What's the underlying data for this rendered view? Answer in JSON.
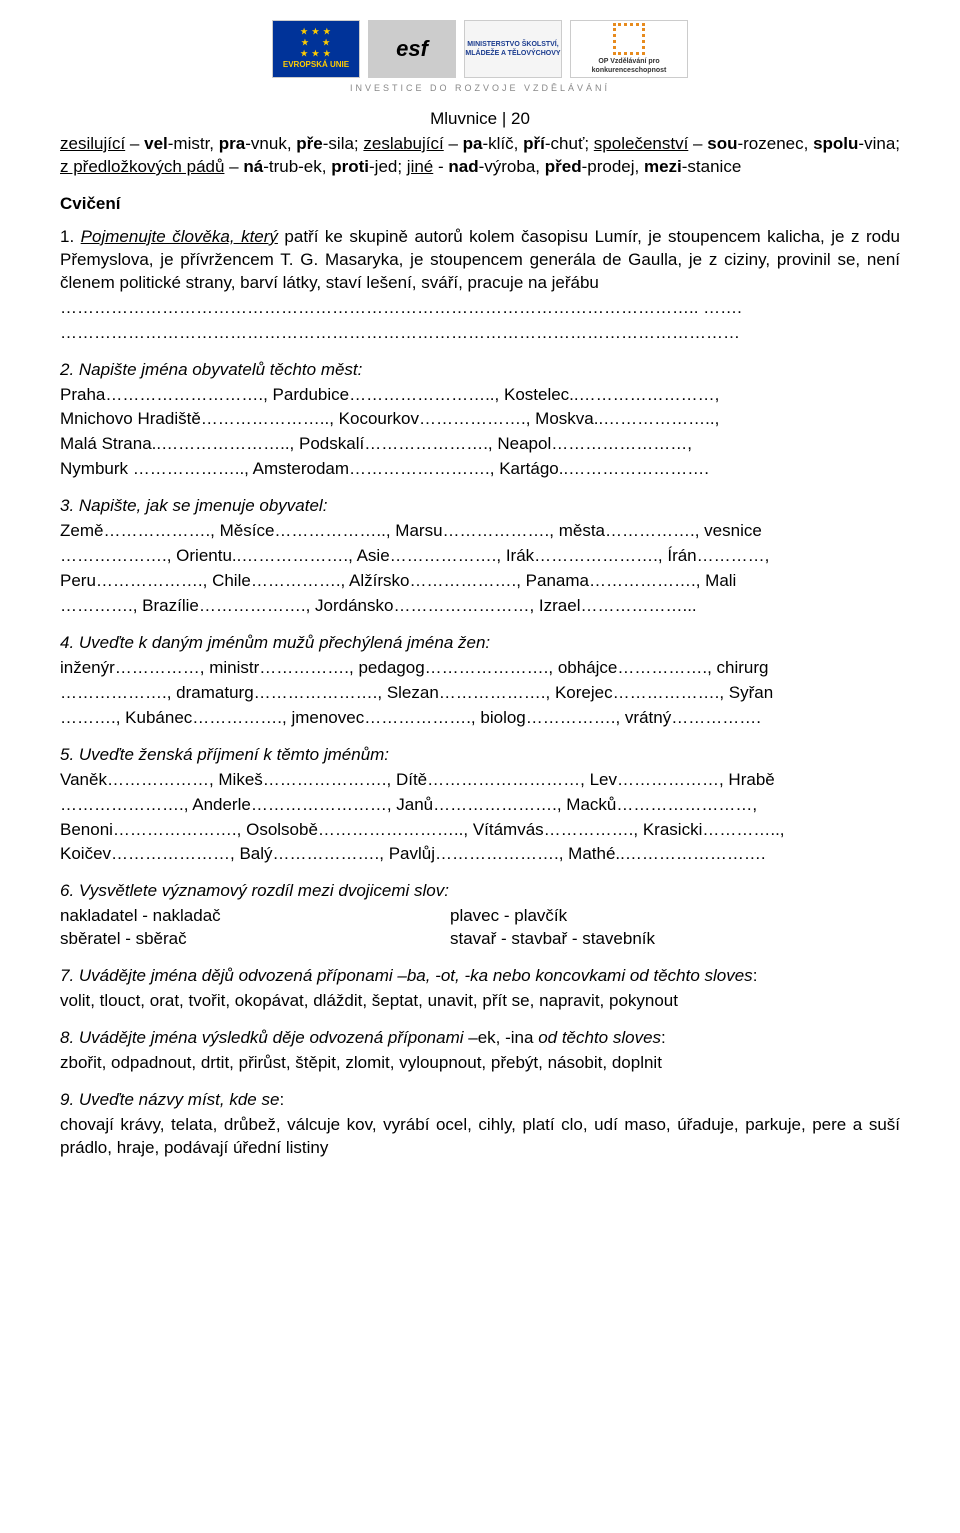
{
  "header": {
    "tagline": "INVESTICE DO ROZVOJE VZDĚLÁVÁNÍ",
    "pageLabel": "Mluvnice | 20"
  },
  "logos": {
    "eu": "EVROPSKÁ UNIE",
    "esf": "esf",
    "msmt": "MINISTERSTVO ŠKOLSTVÍ, MLÁDEŽE A TĚLOVÝCHOVY",
    "op": "OP Vzdělávání pro konkurenceschopnost"
  },
  "intro": {
    "p1": "zesilující – vel-mistr, pra-vnuk, pře-sila; zeslabující – pa-klíč, pří-chuť; společenství – sou-rozenec, spolu-vina; z předložkových pádů – ná-trub-ek, proti-jed; jiné - nad-výroba, před-prodej, mezi-stanice"
  },
  "cviceni": "Cvičení",
  "q1": {
    "lead": "1.  ",
    "title": "Pojmenujte člověka, který",
    "body": " patří ke skupině autorů kolem časopisu Lumír, je stoupencem kalicha, je z rodu Přemyslova, je přívržencem T. G. Masaryka, je stoupencem generála de Gaulla,  je z ciziny, provinil se, není členem politické strany, barví látky, staví lešení, sváří, pracuje na jeřábu",
    "dots1": "………………………………………………………………………………………………….. …….",
    "dots2": "…………………………………………………………………………………………………………"
  },
  "q2": {
    "title": "2.  Napište jména obyvatelů těchto měst:",
    "l1": "Praha………………………., Pardubice…………………….., Kostelec..……………………,",
    "l2": "Mnichovo Hradiště………………….., Kocourkov………………., Moskva..………………..,",
    "l3": "Malá Strana..………………….., Podskalí…………………., Neapol……………………,",
    "l4": "Nymburk ……………….., Amsterodam……………………., Kartágo..……………………."
  },
  "q3": {
    "title": "3.  Napište, jak se jmenuje obyvatel:",
    "l1": "Země………………., Měsíce……………….., Marsu………………., města……………., vesnice",
    "l2": "………………., Orientu..………………., Asie………………., Irák…………………., Írán…………,",
    "l3": "Peru………………., Chile……………., Alžírsko………………., Panama………………., Mali",
    "l4": "…………., Brazílie………………., Jordánsko……………………, Izrael………………..."
  },
  "q4": {
    "title": "4.  Uveďte k daným jménům mužů přechýlená jména žen:",
    "l1": "inženýr……………, ministr……………., pedagog…………………., obhájce……………., chirurg",
    "l2": "………………., dramaturg…………………., Slezan………………., Korejec………………., Syřan",
    "l3": "………., Kubánec……………., jmenovec………………., biolog……………., vrátný……………."
  },
  "q5": {
    "title": "5.  Uveďte ženská příjmení k těmto jménům:",
    "l1": "Vaněk………………, Mikeš…………………., Dítě………………………, Lev………………, Hrabě",
    "l2": "…………………., Anderle……………………, Janů…………………., Macků……………………,",
    "l3": "Benoni…………………., Osolsobě…………………….., Vítámvás……………., Krasicki…………..,",
    "l4": "Koičev…………………, Balý………………., Pavlůj…………………., Mathé..……………………."
  },
  "q6": {
    "title": "6.   Vysvětlete významový rozdíl mezi dvojicemi slov:",
    "left1": "nakladatel    -   nakladač",
    "right1": "plavec    -    plavčík",
    "left2": "sběratel     -   sběrač",
    "right2": "stavař    -    stavbař    - stavebník"
  },
  "q7": {
    "title_a": "7.   Uvádějte jména dějů odvozená příponami –ba, -ot, -ka ",
    "title_b": "nebo koncovkami od těchto sloves",
    "body": "volit, tlouct, orat, tvořit, okopávat, dláždit, šeptat, unavit, přít se, napravit, pokynout"
  },
  "q8": {
    "title_a": "8. Uvádějte jména výsledků děje odvozená příponami ",
    "title_b": "–ek, -ina ",
    "title_c": "od těchto sloves",
    "body": "zbořit, odpadnout, drtit, přirůst, štěpit, zlomit, vyloupnout, přebýt, násobit, doplnit"
  },
  "q9": {
    "title": "9.  Uveďte názvy míst, kde se",
    "body": "chovají krávy, telata, drůbež, válcuje kov, vyrábí ocel, cihly, platí clo, udí maso, úřaduje, parkuje, pere a suší prádlo, hraje, podávají úřední listiny"
  }
}
